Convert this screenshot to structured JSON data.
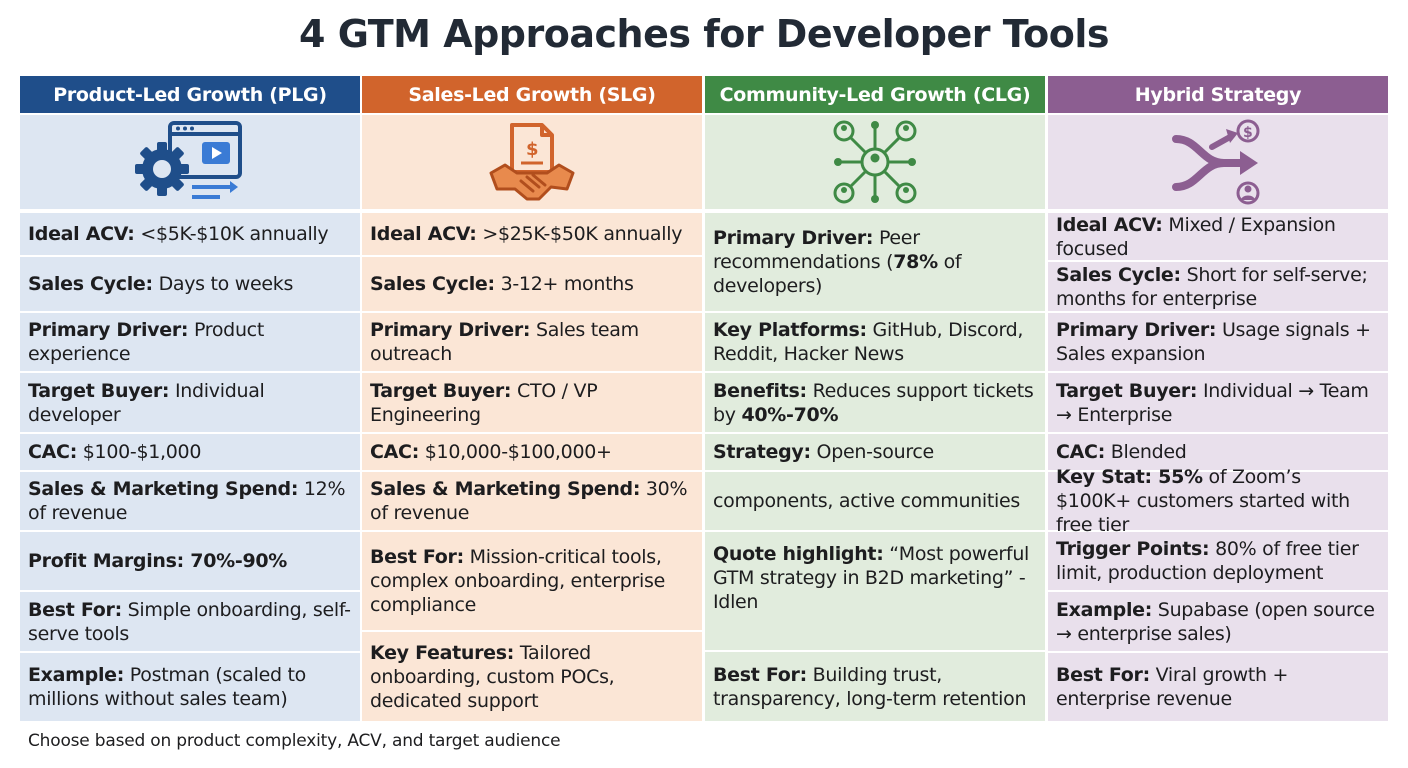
{
  "title": "4 GTM Approaches for Developer Tools",
  "footer": "Choose based on product complexity, ACV, and target audience",
  "colors": {
    "plg_header": "#1f4e8a",
    "plg_fill": "#dde6f2",
    "slg_header": "#d1642c",
    "slg_fill": "#fbe6d6",
    "clg_header": "#3f8a45",
    "clg_fill": "#e1ecdd",
    "hybrid_header": "#8c5e91",
    "hybrid_fill": "#e9e0ec"
  },
  "plg": {
    "header": "Product-Led Growth (PLG)",
    "icon": "gear-video-screen-icon",
    "acv_label": "Ideal ACV:",
    "acv_value": " <$5K-$10K annually",
    "cycle_label": "Sales Cycle:",
    "cycle_value": " Days to weeks",
    "driver_label": "Primary Driver:",
    "driver_value": " Product experience",
    "buyer_label": "Target Buyer:",
    "buyer_value": " Individual developer",
    "cac_label": "CAC:",
    "cac_value": " $100-$1,000",
    "spend_label": "Sales & Marketing Spend:",
    "spend_value": " 12% of revenue",
    "margins_label": "Profit Margins: 70%-90%",
    "best_label": "Best For:",
    "best_value": " Simple onboarding, self-serve tools",
    "example_label": "Example:",
    "example_value": " Postman (scaled to millions without sales team)"
  },
  "slg": {
    "header": "Sales-Led Growth (SLG)",
    "icon": "handshake-contract-icon",
    "acv_label": "Ideal ACV:",
    "acv_value": " >$25K-$50K annually",
    "cycle_label": "Sales Cycle:",
    "cycle_value": " 3-12+ months",
    "driver_label": "Primary Driver:",
    "driver_value": " Sales team outreach",
    "buyer_label": "Target Buyer:",
    "buyer_value": " CTO / VP Engineering",
    "cac_label": "CAC:",
    "cac_value": " $10,000-$100,000+",
    "spend_label": "Sales & Marketing Spend:",
    "spend_value": " 30% of revenue",
    "best_label": "Best For:",
    "best_value": " Mission-critical tools, complex onboarding, enterprise compliance",
    "features_label": "Key Features:",
    "features_value": " Tailored onboarding, custom POCs, dedicated support"
  },
  "clg": {
    "header": "Community-Led Growth (CLG)",
    "icon": "community-network-icon",
    "driver_label": "Primary Driver:",
    "driver_value_a": " Peer recommendations (",
    "driver_bold": "78%",
    "driver_value_b": " of developers)",
    "platforms_label": "Key Platforms:",
    "platforms_value": " GitHub, Discord, Reddit, Hacker News",
    "benefits_label": "Benefits:",
    "benefits_value": " Reduces support tickets by ",
    "benefits_bold": "40%-70%",
    "strategy_label": "Strategy:",
    "strategy_value_a": " Open-source",
    "strategy_value_b": "components, active communities",
    "quote_label": "Quote highlight:",
    "quote_value": " “Most powerful GTM strategy in B2D marketing” - Idlen",
    "best_label": "Best For:",
    "best_value": " Building trust, transparency, long-term retention"
  },
  "hybrid": {
    "header": "Hybrid Strategy",
    "icon": "merge-arrows-dollar-user-icon",
    "acv_label": "Ideal ACV:",
    "acv_value": " Mixed / Expansion focused",
    "cycle_label": "Sales Cycle:",
    "cycle_value": " Short for self-serve; months for enterprise",
    "driver_label": "Primary Driver:",
    "driver_value": " Usage signals + Sales expansion",
    "buyer_label": "Target Buyer:",
    "buyer_value": " Individual → Team → Enterprise",
    "cac_label": "CAC:",
    "cac_value": " Blended",
    "stat_label": "Key Stat:",
    "stat_bold": " 55%",
    "stat_value": " of Zoom’s $100K+ customers started with free tier",
    "trigger_label": "Trigger Points:",
    "trigger_value": " 80% of free tier limit, production deployment",
    "example_label": "Example:",
    "example_value": " Supabase (open source → enterprise sales)",
    "best_label": "Best For:",
    "best_value": " Viral growth + enterprise revenue"
  }
}
